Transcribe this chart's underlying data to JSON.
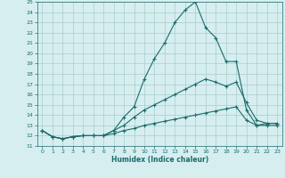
{
  "xlabel": "Humidex (Indice chaleur)",
  "background_color": "#d6eef0",
  "grid_color": "#aacccc",
  "line_color": "#1a6b6b",
  "xlim": [
    -0.5,
    23.5
  ],
  "ylim": [
    11,
    25
  ],
  "xticks": [
    0,
    1,
    2,
    3,
    4,
    5,
    6,
    7,
    8,
    9,
    10,
    11,
    12,
    13,
    14,
    15,
    16,
    17,
    18,
    19,
    20,
    21,
    22,
    23
  ],
  "yticks": [
    11,
    12,
    13,
    14,
    15,
    16,
    17,
    18,
    19,
    20,
    21,
    22,
    23,
    24,
    25
  ],
  "series1_x": [
    0,
    1,
    2,
    3,
    4,
    5,
    6,
    7,
    8,
    9,
    10,
    11,
    12,
    13,
    14,
    15,
    16,
    17,
    18,
    19,
    20,
    21,
    22,
    23
  ],
  "series1_y": [
    12.5,
    11.9,
    11.7,
    11.9,
    12.0,
    12.0,
    12.0,
    12.5,
    13.8,
    14.8,
    17.5,
    19.5,
    21.0,
    23.0,
    24.2,
    25.0,
    22.5,
    21.5,
    19.2,
    19.2,
    14.5,
    13.0,
    13.2,
    13.2
  ],
  "series2_x": [
    0,
    1,
    2,
    3,
    4,
    5,
    6,
    7,
    8,
    9,
    10,
    11,
    12,
    13,
    14,
    15,
    16,
    17,
    18,
    19,
    20,
    21,
    22,
    23
  ],
  "series2_y": [
    12.5,
    11.9,
    11.7,
    11.9,
    12.0,
    12.0,
    12.0,
    12.5,
    13.0,
    13.8,
    14.5,
    15.0,
    15.5,
    16.0,
    16.5,
    17.0,
    17.5,
    17.2,
    16.8,
    17.2,
    15.2,
    13.5,
    13.2,
    13.2
  ],
  "series3_x": [
    0,
    1,
    2,
    3,
    4,
    5,
    6,
    7,
    8,
    9,
    10,
    11,
    12,
    13,
    14,
    15,
    16,
    17,
    18,
    19,
    20,
    21,
    22,
    23
  ],
  "series3_y": [
    12.5,
    11.9,
    11.7,
    11.9,
    12.0,
    12.0,
    12.0,
    12.2,
    12.5,
    12.7,
    13.0,
    13.2,
    13.4,
    13.6,
    13.8,
    14.0,
    14.2,
    14.4,
    14.6,
    14.8,
    13.5,
    13.0,
    13.0,
    13.0
  ]
}
